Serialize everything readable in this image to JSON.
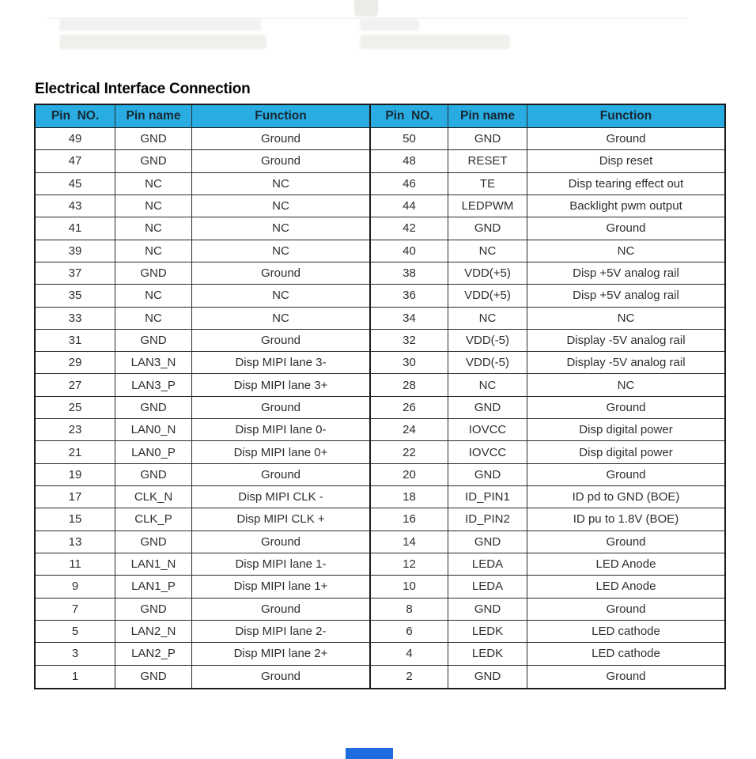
{
  "title": "Electrical Interface Connection",
  "colors": {
    "header_bg": "#28ace2",
    "header_text": "#182733",
    "table_border": "#1b1b1b",
    "body_text": "#2e2e2e",
    "bottom_mark_blue": "#1f6be0"
  },
  "table": {
    "header": {
      "pin_no": "Pin  NO.",
      "pin_name": "Pin name",
      "function": "Function"
    },
    "rows": [
      {
        "l": [
          "49",
          "GND",
          "Ground"
        ],
        "r": [
          "50",
          "GND",
          "Ground"
        ]
      },
      {
        "l": [
          "47",
          "GND",
          "Ground"
        ],
        "r": [
          "48",
          "RESET",
          "Disp reset"
        ]
      },
      {
        "l": [
          "45",
          "NC",
          "NC"
        ],
        "r": [
          "46",
          "TE",
          "Disp tearing effect out"
        ]
      },
      {
        "l": [
          "43",
          "NC",
          "NC"
        ],
        "r": [
          "44",
          "LEDPWM",
          "Backlight pwm output"
        ]
      },
      {
        "l": [
          "41",
          "NC",
          "NC"
        ],
        "r": [
          "42",
          "GND",
          "Ground"
        ]
      },
      {
        "l": [
          "39",
          "NC",
          "NC"
        ],
        "r": [
          "40",
          "NC",
          "NC"
        ]
      },
      {
        "l": [
          "37",
          "GND",
          "Ground"
        ],
        "r": [
          "38",
          "VDD(+5)",
          "Disp +5V analog rail"
        ]
      },
      {
        "l": [
          "35",
          "NC",
          "NC"
        ],
        "r": [
          "36",
          "VDD(+5)",
          "Disp +5V analog rail"
        ]
      },
      {
        "l": [
          "33",
          "NC",
          "NC"
        ],
        "r": [
          "34",
          "NC",
          "NC"
        ]
      },
      {
        "l": [
          "31",
          "GND",
          "Ground"
        ],
        "r": [
          "32",
          "VDD(-5)",
          "Display -5V analog rail"
        ]
      },
      {
        "l": [
          "29",
          "LAN3_N",
          "Disp MIPI lane 3-"
        ],
        "r": [
          "30",
          "VDD(-5)",
          "Display -5V analog rail"
        ]
      },
      {
        "l": [
          "27",
          "LAN3_P",
          "Disp MIPI lane 3+"
        ],
        "r": [
          "28",
          "NC",
          "NC"
        ]
      },
      {
        "l": [
          "25",
          "GND",
          "Ground"
        ],
        "r": [
          "26",
          "GND",
          "Ground"
        ]
      },
      {
        "l": [
          "23",
          "LAN0_N",
          "Disp MIPI lane 0-"
        ],
        "r": [
          "24",
          "IOVCC",
          "Disp digital power"
        ]
      },
      {
        "l": [
          "21",
          "LAN0_P",
          "Disp MIPI lane 0+"
        ],
        "r": [
          "22",
          "IOVCC",
          "Disp digital power"
        ]
      },
      {
        "l": [
          "19",
          "GND",
          "Ground"
        ],
        "r": [
          "20",
          "GND",
          "Ground"
        ]
      },
      {
        "l": [
          "17",
          "CLK_N",
          "Disp MIPI CLK -"
        ],
        "r": [
          "18",
          "ID_PIN1",
          "ID pd to GND (BOE)"
        ]
      },
      {
        "l": [
          "15",
          "CLK_P",
          "Disp MIPI CLK +"
        ],
        "r": [
          "16",
          "ID_PIN2",
          "ID pu to 1.8V (BOE)"
        ]
      },
      {
        "l": [
          "13",
          "GND",
          "Ground"
        ],
        "r": [
          "14",
          "GND",
          "Ground"
        ]
      },
      {
        "l": [
          "11",
          "LAN1_N",
          "Disp MIPI lane 1-"
        ],
        "r": [
          "12",
          "LEDA",
          "LED Anode"
        ]
      },
      {
        "l": [
          "9",
          "LAN1_P",
          "Disp MIPI lane 1+"
        ],
        "r": [
          "10",
          "LEDA",
          "LED Anode"
        ]
      },
      {
        "l": [
          "7",
          "GND",
          "Ground"
        ],
        "r": [
          "8",
          "GND",
          "Ground"
        ]
      },
      {
        "l": [
          "5",
          "LAN2_N",
          "Disp MIPI lane 2-"
        ],
        "r": [
          "6",
          "LEDK",
          "LED cathode"
        ]
      },
      {
        "l": [
          "3",
          "LAN2_P",
          "Disp MIPI lane 2+"
        ],
        "r": [
          "4",
          "LEDK",
          "LED cathode"
        ]
      },
      {
        "l": [
          "1",
          "GND",
          "Ground"
        ],
        "r": [
          "2",
          "GND",
          "Ground"
        ]
      }
    ]
  }
}
